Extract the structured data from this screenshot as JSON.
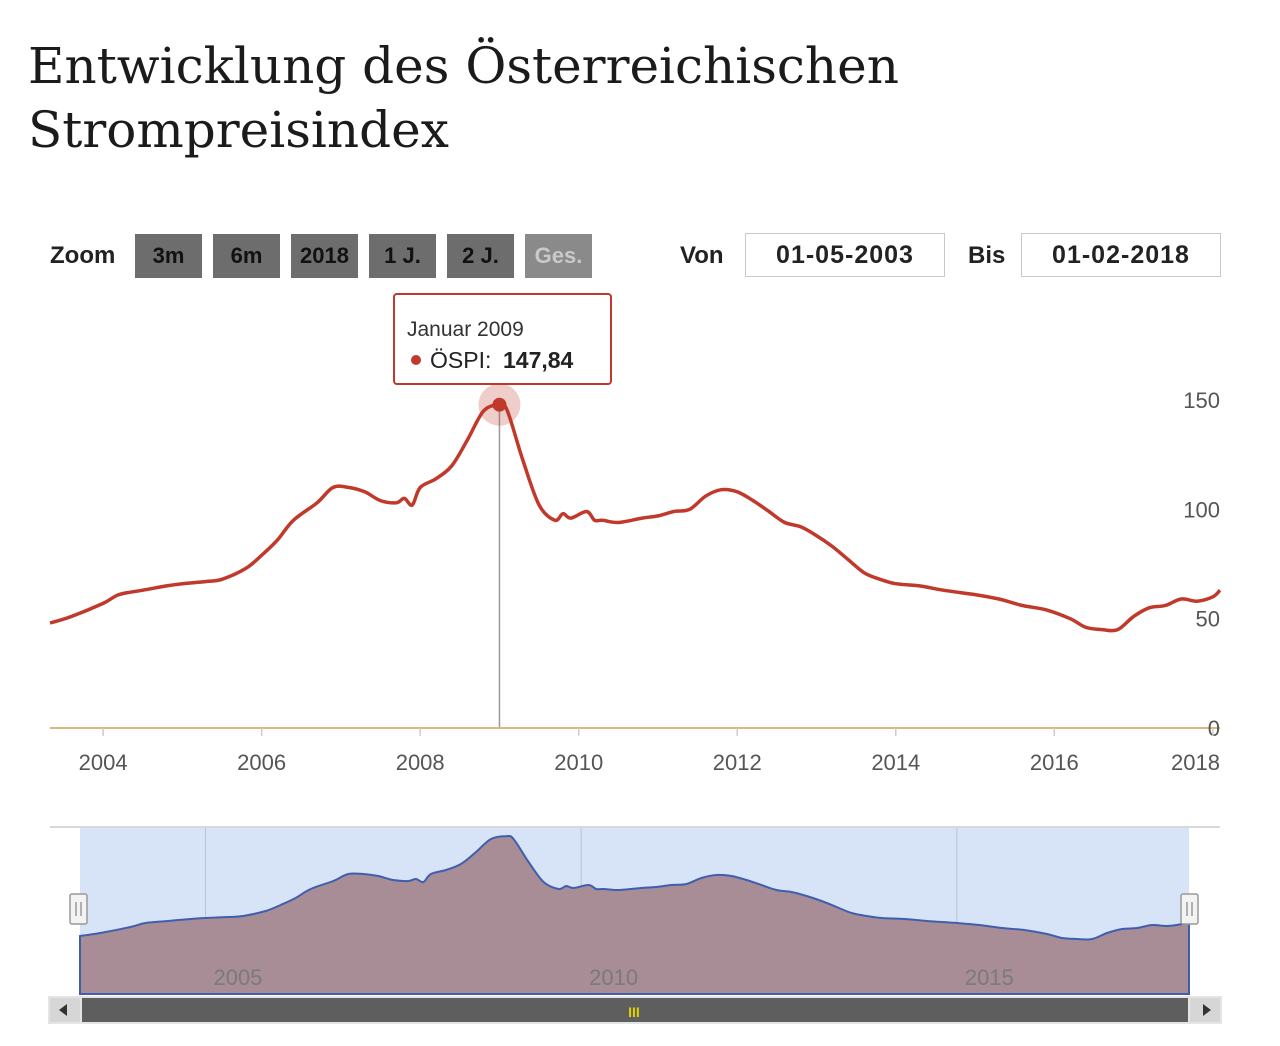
{
  "page": {
    "title": "Entwicklung des Österreichischen Strompreisindex"
  },
  "toolbar": {
    "zoom_label": "Zoom",
    "buttons": [
      "3m",
      "6m",
      "2018",
      "1 J.",
      "2 J.",
      "Ges."
    ],
    "from_label": "Von",
    "from_value": "01-05-2003",
    "to_label": "Bis",
    "to_value": "01-02-2018"
  },
  "tooltip": {
    "date": "Januar 2009",
    "series": "ÖSPI:",
    "value": "147,84"
  },
  "navigator": {
    "labels": [
      "2005",
      "2010",
      "2015"
    ],
    "scroll_grip": "III"
  },
  "colors": {
    "line": "#c0392b",
    "navigator_fill": "#a88d96",
    "navigator_mask": "#d7e3f6",
    "button": "#6d6d6d"
  },
  "chart_data": {
    "type": "line",
    "title": "Entwicklung des Österreichischen Strompreisindex",
    "xlabel": "",
    "ylabel": "",
    "xlim": [
      2003.33,
      2018.09
    ],
    "ylim": [
      0,
      150
    ],
    "y_ticks": [
      0,
      50,
      100,
      150
    ],
    "x_ticks": [
      2004,
      2006,
      2008,
      2010,
      2012,
      2014,
      2016,
      2018
    ],
    "grid": false,
    "legend": "none",
    "series": [
      {
        "name": "ÖSPI",
        "x": [
          2003.33,
          2003.6,
          2004.0,
          2004.2,
          2004.5,
          2004.8,
          2005.0,
          2005.3,
          2005.5,
          2005.8,
          2006.0,
          2006.2,
          2006.4,
          2006.7,
          2006.9,
          2007.1,
          2007.3,
          2007.5,
          2007.7,
          2007.8,
          2007.9,
          2008.0,
          2008.2,
          2008.4,
          2008.6,
          2008.8,
          2009.0,
          2009.1,
          2009.3,
          2009.5,
          2009.7,
          2009.8,
          2009.9,
          2010.1,
          2010.2,
          2010.3,
          2010.5,
          2010.8,
          2011.0,
          2011.2,
          2011.4,
          2011.6,
          2011.8,
          2012.0,
          2012.2,
          2012.4,
          2012.6,
          2012.8,
          2013.0,
          2013.2,
          2013.4,
          2013.6,
          2013.8,
          2014.0,
          2014.3,
          2014.6,
          2015.0,
          2015.3,
          2015.6,
          2015.9,
          2016.2,
          2016.4,
          2016.6,
          2016.8,
          2017.0,
          2017.2,
          2017.4,
          2017.6,
          2017.8,
          2018.0,
          2018.09
        ],
        "values": [
          48,
          51,
          57,
          61,
          63,
          65,
          66,
          67,
          68,
          73,
          79,
          86,
          95,
          103,
          110,
          110,
          108,
          104,
          103,
          105,
          102,
          110,
          114,
          120,
          132,
          145,
          147.84,
          145,
          122,
          102,
          95,
          98,
          96,
          99,
          95,
          95,
          94,
          96,
          97,
          99,
          100,
          106,
          109,
          108,
          104,
          99,
          94,
          92,
          88,
          83,
          77,
          71,
          68,
          66,
          65,
          63,
          61,
          59,
          56,
          54,
          50,
          46,
          45,
          45,
          51,
          55,
          56,
          59,
          58,
          60,
          63
        ]
      }
    ],
    "highlight": {
      "x": 2009.0,
      "value": 147.84,
      "label": "Januar 2009"
    }
  }
}
